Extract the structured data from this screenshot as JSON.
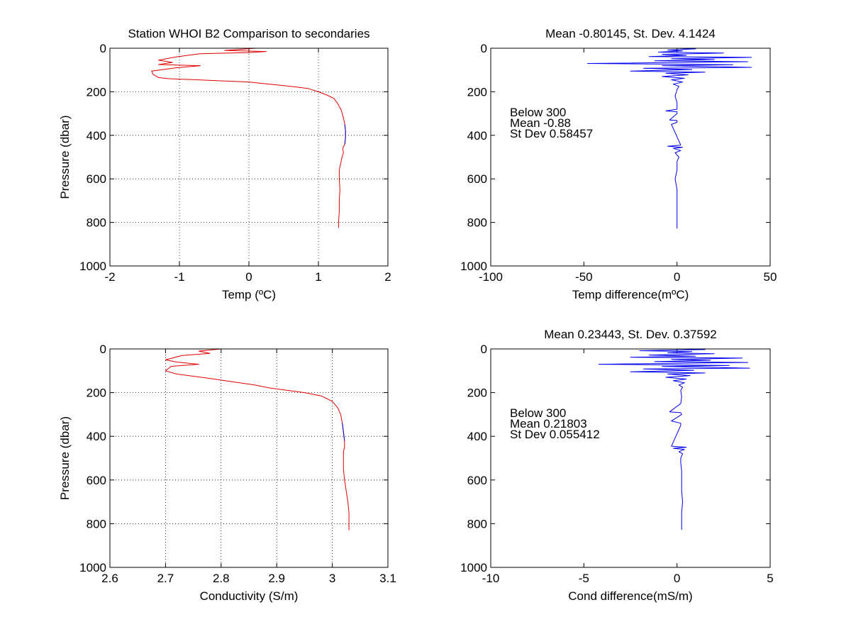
{
  "colors": {
    "profile_line": "#e00000",
    "profile_overlay": "#0000cc",
    "difference_line": "#0000ee"
  },
  "chart_data": [
    {
      "type": "line",
      "title": "Station  WHOI B2 Comparison to secondaries",
      "xlabel": "Temp (ºC)",
      "ylabel": "Pressure (dbar)",
      "xlim": [
        -2,
        2
      ],
      "ylim": [
        0,
        1000
      ],
      "y_reversed": true,
      "grid": true,
      "xticks": [
        "-2",
        "-1",
        "0",
        "1",
        "2"
      ],
      "yticks": [
        "0",
        "200",
        "400",
        "600",
        "800",
        "1000"
      ],
      "annotations": [],
      "series": [
        {
          "color": "#e00000",
          "x": [
            0.1,
            -0.35,
            0.25,
            0.0,
            -0.7,
            -1.05,
            -1.3,
            -1.1,
            -1.3,
            -0.7,
            -1.05,
            -1.4,
            -1.38,
            -1.3,
            -1.15,
            -0.75,
            -0.4,
            0.0,
            0.3,
            0.6,
            0.85,
            1.0,
            1.12,
            1.22,
            1.28,
            1.33,
            1.36,
            1.38,
            1.39,
            1.39,
            1.38,
            1.35,
            1.36,
            1.34,
            1.32,
            1.3,
            1.3,
            1.31,
            1.3,
            1.3,
            1.29,
            1.29
          ],
          "y": [
            0,
            10,
            15,
            20,
            25,
            40,
            55,
            65,
            75,
            80,
            90,
            105,
            120,
            135,
            140,
            145,
            150,
            155,
            165,
            175,
            185,
            200,
            215,
            230,
            255,
            285,
            320,
            350,
            380,
            410,
            440,
            460,
            480,
            500,
            530,
            560,
            600,
            650,
            700,
            750,
            800,
            825
          ]
        },
        {
          "color": "#0000cc",
          "x": [
            1.38,
            1.39,
            1.39,
            1.38
          ],
          "y": [
            350,
            380,
            410,
            440
          ]
        }
      ]
    },
    {
      "type": "line",
      "title": "Mean -0.80145, St. Dev. 4.1424",
      "xlabel": "Temp difference(mºC)",
      "ylabel": "",
      "xlim": [
        -100,
        50
      ],
      "ylim": [
        0,
        1000
      ],
      "y_reversed": true,
      "grid": false,
      "xticks": [
        "-100",
        "-50",
        "0",
        "50"
      ],
      "yticks": [
        "0",
        "200",
        "400",
        "600",
        "800",
        "1000"
      ],
      "annotations": [
        "Below 300",
        "Mean -0.88",
        "St Dev 0.58457"
      ],
      "series": [
        {
          "color": "#0000ee",
          "x": [
            0,
            10,
            -5,
            3,
            -10,
            25,
            -8,
            5,
            -15,
            40,
            -3,
            20,
            -12,
            38,
            -48,
            30,
            -8,
            40,
            -18,
            8,
            -25,
            15,
            -6,
            6,
            -8,
            4,
            -3,
            3,
            -2,
            1,
            0,
            -1,
            0,
            0,
            -6,
            0,
            0,
            -4,
            0,
            0,
            -3,
            2,
            -5,
            3,
            -2,
            2,
            -1,
            1,
            0,
            0,
            -1,
            0,
            0,
            0,
            0,
            0,
            0,
            0
          ],
          "y": [
            0,
            3,
            8,
            12,
            18,
            22,
            28,
            33,
            38,
            42,
            48,
            52,
            58,
            62,
            70,
            76,
            80,
            88,
            92,
            98,
            105,
            110,
            115,
            122,
            130,
            138,
            145,
            155,
            165,
            175,
            190,
            220,
            250,
            280,
            288,
            292,
            300,
            330,
            332,
            340,
            350,
            445,
            450,
            455,
            460,
            470,
            480,
            500,
            520,
            560,
            600,
            650,
            700,
            750,
            800,
            810,
            820,
            828
          ]
        }
      ]
    },
    {
      "type": "line",
      "title": "",
      "xlabel": "Conductivity (S/m)",
      "ylabel": "Pressure (dbar)",
      "xlim": [
        2.6,
        3.1
      ],
      "ylim": [
        0,
        1000
      ],
      "y_reversed": true,
      "grid": true,
      "xticks": [
        "2.6",
        "2.7",
        "2.8",
        "2.9",
        "3",
        "3.1"
      ],
      "yticks": [
        "0",
        "200",
        "400",
        "600",
        "800",
        "1000"
      ],
      "annotations": [],
      "series": [
        {
          "color": "#e00000",
          "x": [
            2.8,
            2.76,
            2.78,
            2.73,
            2.7,
            2.72,
            2.76,
            2.71,
            2.7,
            2.72,
            2.75,
            2.78,
            2.82,
            2.86,
            2.89,
            2.92,
            2.95,
            2.98,
            3.0,
            3.01,
            3.015,
            3.018,
            3.02,
            3.022,
            3.022,
            3.02,
            3.02,
            3.02,
            3.022,
            3.025,
            3.028,
            3.03,
            3.03
          ],
          "y": [
            0,
            10,
            20,
            30,
            50,
            60,
            70,
            80,
            100,
            115,
            125,
            135,
            150,
            165,
            180,
            190,
            200,
            215,
            240,
            270,
            300,
            340,
            380,
            420,
            450,
            470,
            500,
            550,
            600,
            650,
            700,
            750,
            830
          ]
        },
        {
          "color": "#0000cc",
          "x": [
            3.018,
            3.02,
            3.022
          ],
          "y": [
            340,
            380,
            420
          ]
        }
      ]
    },
    {
      "type": "line",
      "title": "Mean 0.23443, St. Dev. 0.37592",
      "xlabel": "Cond difference(mS/m)",
      "ylabel": "",
      "xlim": [
        -10,
        5
      ],
      "ylim": [
        0,
        1000
      ],
      "y_reversed": true,
      "grid": false,
      "xticks": [
        "-10",
        "-5",
        "0",
        "5"
      ],
      "yticks": [
        "0",
        "200",
        "400",
        "600",
        "800",
        "1000"
      ],
      "annotations": [
        "Below 300",
        "Mean 0.21803",
        "St Dev 0.055412"
      ],
      "series": [
        {
          "color": "#0000ee",
          "x": [
            0.2,
            1.5,
            -2.0,
            0.8,
            -0.5,
            2.0,
            -1.5,
            1.0,
            -2.5,
            3.5,
            -0.3,
            1.8,
            -1.2,
            3.8,
            -4.2,
            2.8,
            -0.8,
            3.9,
            -1.8,
            0.9,
            -2.5,
            1.5,
            -0.5,
            0.7,
            -0.6,
            0.5,
            -0.2,
            0.4,
            0.1,
            0.3,
            0.2,
            0.25,
            0.2,
            -0.4,
            0.2,
            0.25,
            -0.3,
            0.2,
            0.2,
            -0.3,
            0.5,
            -0.2,
            0.4,
            0.1,
            0.3,
            0.2,
            0.2,
            0.25,
            0.25,
            0.25,
            0.3,
            0.25,
            0.25,
            0.25,
            0.25
          ],
          "y": [
            0,
            3,
            8,
            12,
            18,
            22,
            28,
            33,
            38,
            42,
            48,
            52,
            58,
            62,
            70,
            76,
            80,
            88,
            92,
            98,
            105,
            110,
            115,
            122,
            130,
            138,
            145,
            155,
            165,
            175,
            190,
            220,
            250,
            288,
            292,
            300,
            330,
            340,
            350,
            445,
            450,
            455,
            460,
            470,
            480,
            500,
            520,
            560,
            600,
            650,
            700,
            750,
            800,
            820,
            828
          ]
        }
      ]
    }
  ]
}
